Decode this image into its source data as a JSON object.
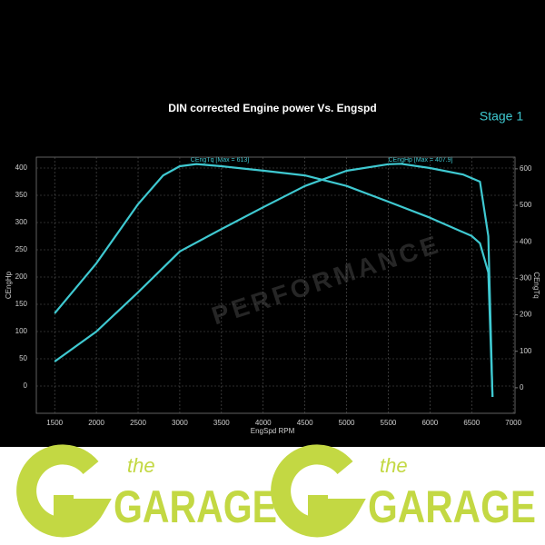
{
  "chart_data": {
    "type": "line",
    "title": "DIN corrected Engine power Vs. Engspd",
    "badge": "Stage 1",
    "watermark": "PERFORMANCE",
    "x_label": "EngSpd RPM",
    "y_label": "CEngHp",
    "y2_label": "CEngTq",
    "annotations": [
      "CEngTq [Max = 613]",
      "CEngHp [Max = 407.9]"
    ],
    "xlim": [
      1280,
      7020
    ],
    "xticks": [
      1500,
      2000,
      2500,
      3000,
      3500,
      4000,
      4500,
      5000,
      5500,
      6000,
      6500,
      7000
    ],
    "ylim": [
      -50,
      420
    ],
    "yticks": [
      0,
      50,
      100,
      150,
      200,
      250,
      300,
      350,
      400
    ],
    "y2lim": [
      -70,
      632
    ],
    "y2ticks": [
      0,
      100,
      200,
      300,
      400,
      500,
      600
    ],
    "grid": true,
    "series": [
      {
        "name": "CEngTq",
        "color": "#3fc9d1",
        "axis": "y2",
        "x": [
          1500,
          2000,
          2500,
          2800,
          3000,
          3200,
          3500,
          4000,
          4500,
          5000,
          5500,
          6000,
          6500,
          6600,
          6700,
          6750
        ],
        "values": [
          204,
          341,
          503,
          582,
          607,
          613,
          607,
          595,
          582,
          553,
          510,
          466,
          416,
          396,
          316,
          -25
        ]
      },
      {
        "name": "CEngHp",
        "color": "#3fc9d1",
        "x": [
          1500,
          2000,
          2500,
          3000,
          3500,
          4000,
          4500,
          5000,
          5500,
          5650,
          6000,
          6400,
          6600,
          6700,
          6750
        ],
        "values": [
          45,
          100,
          172,
          247,
          288,
          328,
          367,
          395,
          407,
          407.9,
          400,
          388,
          375,
          275,
          -20
        ]
      }
    ]
  },
  "footer": {
    "logos": [
      {
        "small": "the",
        "big": "GARAGE"
      },
      {
        "small": "the",
        "big": "GARAGE"
      }
    ]
  }
}
